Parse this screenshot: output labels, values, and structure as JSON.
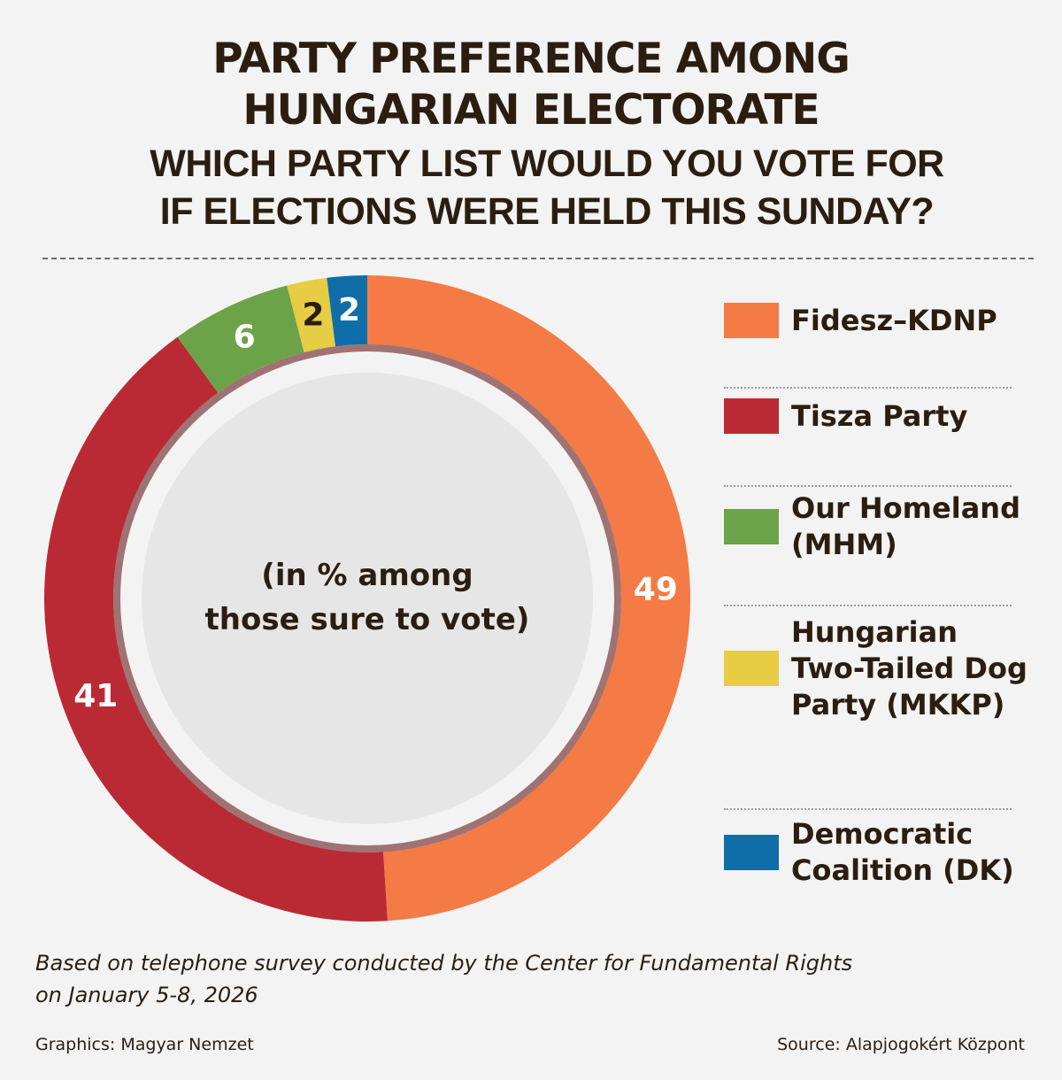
{
  "header": {
    "title_line1": "PARTY PREFERENCE AMONG",
    "title_line2": "HUNGARIAN ELECTORATE",
    "subtitle_line1": "WHICH PARTY LIST WOULD YOU VOTE FOR",
    "subtitle_line2": "IF ELECTIONS WERE HELD THIS SUNDAY?"
  },
  "chart_data": {
    "type": "pie",
    "center_label_line1": "(in % among",
    "center_label_line2": "those sure to vote)",
    "unit": "%",
    "legend_position": "right",
    "slices": [
      {
        "label": "Fidesz–KDNP",
        "value": 49,
        "color": "#f47b45",
        "label_color": "#ffffff"
      },
      {
        "label": "Tisza Party",
        "value": 41,
        "color": "#ba2a35",
        "label_color": "#ffffff"
      },
      {
        "label": "Our Homeland (MHM)",
        "value": 6,
        "color": "#6ca348",
        "label_color": "#ffffff"
      },
      {
        "label": "Hungarian Two-Tailed Dog Party (MKKP)",
        "value": 2,
        "color": "#e6cd43",
        "label_color": "#2b1d10"
      },
      {
        "label": "Democratic Coalition (DK)",
        "value": 2,
        "color": "#0f6ea8",
        "label_color": "#ffffff"
      }
    ]
  },
  "legend": {
    "items": [
      {
        "label": "Fidesz–KDNP",
        "color": "#f47b45"
      },
      {
        "label": "Tisza Party",
        "color": "#ba2a35"
      },
      {
        "label": "Our Homeland (MHM)",
        "color": "#6ca348"
      },
      {
        "label": "Hungarian Two-Tailed Dog Party (MKKP)",
        "color": "#e6cd43"
      },
      {
        "label": "Democratic Coalition (DK)",
        "color": "#0f6ea8"
      }
    ]
  },
  "footer": {
    "note_line1": "Based on telephone survey conducted by the Center for Fundamental Rights",
    "note_line2": "on January 5-8, 2026",
    "graphics_credit": "Graphics: Magyar Nemzet",
    "source_credit": "Source: Alapjogokért Központ"
  }
}
